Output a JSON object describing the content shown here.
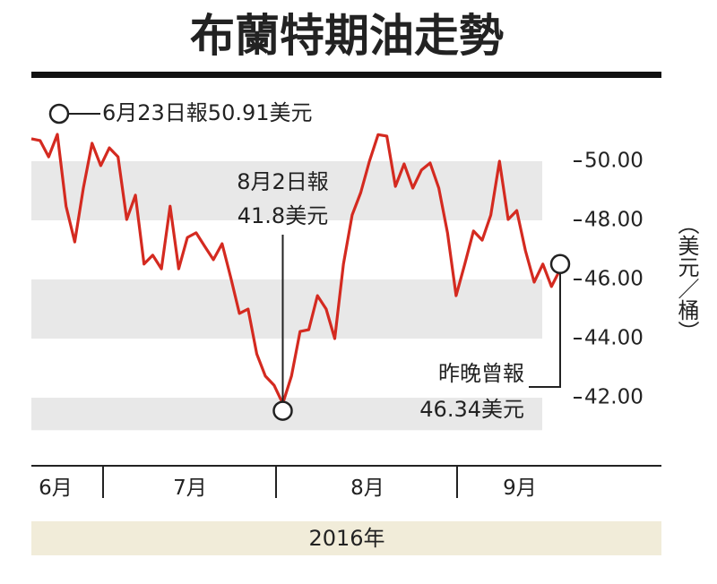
{
  "chart_data": {
    "type": "line",
    "title": "布蘭特期油走勢",
    "x_axis_labels": [
      "6月",
      "7月",
      "8月",
      "9月"
    ],
    "x_axis_title": "2016年",
    "y_axis_title": "（美元／桶）",
    "ylim": [
      40.9,
      51.1
    ],
    "yticks": [
      {
        "value": 50,
        "label": "50.00"
      },
      {
        "value": 48,
        "label": "48.00"
      },
      {
        "value": 46,
        "label": "46.00"
      },
      {
        "value": 44,
        "label": "44.00"
      },
      {
        "value": 42,
        "label": "42.00"
      }
    ],
    "color": "#d42a20",
    "band_color": "#e8e8e8",
    "values": [
      50.76,
      50.7,
      50.15,
      50.91,
      48.48,
      47.27,
      49.09,
      50.61,
      49.85,
      50.45,
      50.15,
      48.03,
      48.85,
      46.52,
      46.82,
      46.36,
      48.48,
      46.36,
      47.42,
      47.58,
      47.12,
      46.67,
      47.21,
      46.06,
      44.85,
      45.0,
      43.48,
      42.73,
      42.42,
      41.8,
      42.73,
      44.24,
      44.3,
      45.45,
      45.0,
      44.0,
      46.52,
      48.18,
      48.94,
      50.0,
      50.9,
      50.85,
      49.15,
      49.91,
      49.09,
      49.7,
      49.94,
      49.09,
      47.58,
      45.45,
      46.52,
      47.64,
      47.33,
      48.18,
      50.0,
      48.03,
      48.33,
      46.97,
      45.91,
      46.52,
      45.76,
      46.34
    ],
    "annotations": [
      {
        "lines": [
          "6月23日報50.91美元"
        ]
      },
      {
        "lines": [
          "8月2日報",
          "41.8美元"
        ]
      },
      {
        "lines": [
          "昨晚曾報",
          "46.34美元"
        ]
      }
    ]
  }
}
